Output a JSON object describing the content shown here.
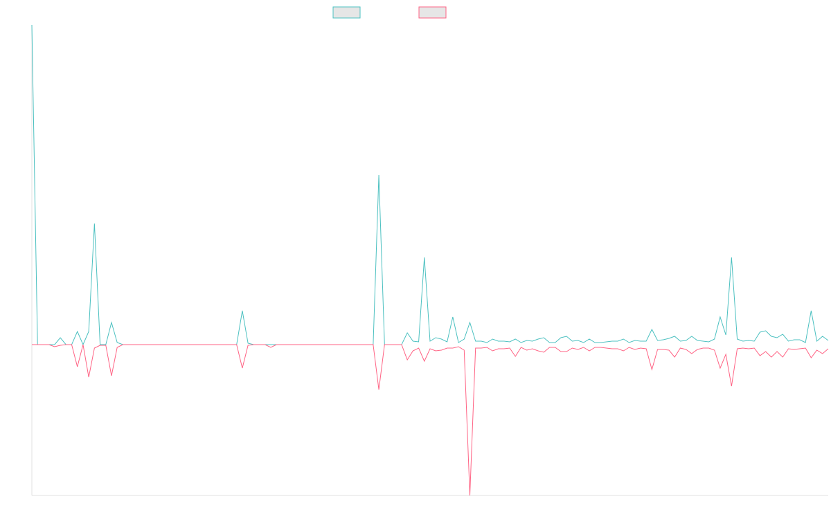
{
  "chart_data": {
    "type": "line",
    "categories": [
      null,
      null,
      null,
      null,
      null,
      null,
      null,
      null,
      null,
      null,
      null,
      null,
      null,
      null,
      null,
      null,
      null,
      null,
      null,
      null,
      null,
      null,
      null,
      null,
      null,
      null,
      null,
      null,
      null,
      null,
      null,
      null,
      null,
      null,
      null,
      null,
      null,
      null,
      null,
      null,
      null,
      null,
      null,
      null,
      null,
      null,
      null,
      null,
      null,
      null,
      null,
      null,
      null,
      null,
      null,
      null,
      null,
      null,
      null,
      null,
      null,
      null,
      null,
      null,
      null,
      null,
      null,
      null,
      null,
      null,
      null,
      null,
      null,
      null,
      null,
      null,
      null,
      null,
      null,
      null,
      null,
      null,
      null,
      null,
      null,
      null,
      null,
      null,
      null,
      null,
      null,
      null,
      null,
      null,
      null,
      null,
      null,
      null,
      null,
      null,
      null,
      null,
      null,
      null,
      null,
      null,
      null,
      null,
      null,
      null,
      null,
      null,
      null,
      null,
      null,
      null,
      null,
      null,
      null,
      null,
      null,
      null,
      null,
      null,
      null,
      null,
      null,
      null,
      null,
      null,
      null,
      null,
      null,
      null,
      null,
      null,
      null,
      null,
      null,
      null,
      null
    ],
    "series": [
      {
        "color": "#4bc0c0",
        "values": [
          462,
          0,
          0,
          0,
          0,
          10,
          0,
          0,
          19,
          0,
          19,
          175,
          0,
          0,
          32,
          3,
          0,
          0,
          0,
          0,
          0,
          0,
          0,
          0,
          0,
          0,
          0,
          0,
          0,
          0,
          0,
          0,
          0,
          0,
          0,
          0,
          0,
          49,
          2,
          0,
          0,
          0,
          0,
          0,
          0,
          0,
          0,
          0,
          0,
          0,
          0,
          0,
          0,
          0,
          0,
          0,
          0,
          0,
          0,
          0,
          0,
          245,
          0,
          0,
          0,
          0,
          17,
          5,
          4,
          126,
          5,
          10,
          8,
          4,
          40,
          3,
          8,
          32,
          5,
          5,
          3,
          8,
          5,
          5,
          4,
          8,
          3,
          6,
          5,
          8,
          10,
          3,
          3,
          10,
          12,
          5,
          6,
          3,
          8,
          3,
          3,
          4,
          5,
          5,
          8,
          3,
          6,
          5,
          5,
          22,
          6,
          7,
          9,
          12,
          5,
          6,
          12,
          6,
          5,
          4,
          8,
          40,
          14,
          126,
          8,
          5,
          6,
          5,
          18,
          20,
          12,
          10,
          15,
          5,
          7,
          7,
          3,
          49,
          5,
          12,
          6
        ]
      },
      {
        "color": "#ff6384",
        "values": [
          0,
          0,
          0,
          0,
          -3,
          -1,
          0,
          0,
          -32,
          0,
          -47,
          -5,
          -1,
          -1,
          -45,
          -4,
          0,
          0,
          0,
          0,
          0,
          0,
          0,
          0,
          0,
          0,
          0,
          0,
          0,
          0,
          0,
          0,
          0,
          0,
          0,
          0,
          0,
          -34,
          -1,
          0,
          0,
          0,
          -4,
          0,
          0,
          0,
          0,
          0,
          0,
          0,
          0,
          0,
          0,
          0,
          0,
          0,
          0,
          0,
          0,
          0,
          0,
          -65,
          0,
          0,
          0,
          0,
          -22,
          -9,
          -5,
          -24,
          -6,
          -9,
          -8,
          -5,
          -5,
          -3,
          -8,
          -218,
          -5,
          -5,
          -4,
          -9,
          -6,
          -6,
          -5,
          -17,
          -4,
          -8,
          -6,
          -9,
          -11,
          -4,
          -4,
          -10,
          -10,
          -5,
          -7,
          -4,
          -9,
          -4,
          -4,
          -5,
          -6,
          -6,
          -9,
          -4,
          -7,
          -5,
          -6,
          -36,
          -7,
          -7,
          -8,
          -18,
          -5,
          -7,
          -13,
          -7,
          -5,
          -5,
          -8,
          -34,
          -14,
          -60,
          -6,
          -5,
          -6,
          -5,
          -16,
          -10,
          -18,
          -10,
          -18,
          -6,
          -7,
          -6,
          -5,
          -19,
          -8,
          -13,
          -6
        ]
      }
    ],
    "ylim": [
      -218,
      462
    ]
  }
}
